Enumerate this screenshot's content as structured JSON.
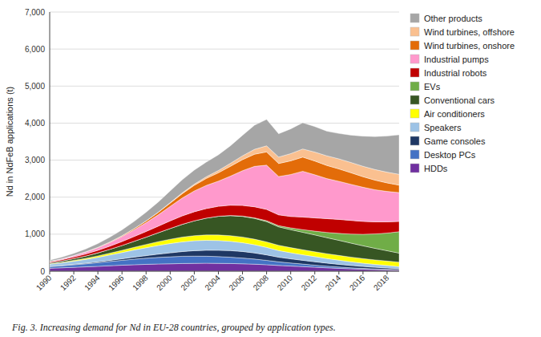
{
  "chart_data": {
    "type": "area",
    "stacked": true,
    "x": [
      1990,
      1991,
      1992,
      1993,
      1994,
      1995,
      1996,
      1997,
      1998,
      1999,
      2000,
      2001,
      2002,
      2003,
      2004,
      2005,
      2006,
      2007,
      2008,
      2009,
      2010,
      2011,
      2012,
      2013,
      2014,
      2015,
      2016,
      2017,
      2018,
      2019
    ],
    "series": [
      {
        "name": "HDDs",
        "color": "#7030a0",
        "values": [
          80,
          92,
          105,
          118,
          132,
          148,
          162,
          175,
          185,
          195,
          200,
          208,
          212,
          215,
          212,
          208,
          200,
          190,
          175,
          155,
          140,
          125,
          108,
          92,
          78,
          65,
          55,
          45,
          38,
          30
        ]
      },
      {
        "name": "Desktop PCs",
        "color": "#4472c4",
        "values": [
          45,
          55,
          68,
          82,
          98,
          115,
          132,
          150,
          165,
          178,
          188,
          195,
          195,
          190,
          182,
          170,
          155,
          138,
          118,
          98,
          82,
          68,
          55,
          45,
          36,
          28,
          22,
          17,
          13,
          10
        ]
      },
      {
        "name": "Game consoles",
        "color": "#1f3864",
        "values": [
          8,
          10,
          14,
          18,
          24,
          32,
          42,
          55,
          70,
          88,
          108,
          128,
          148,
          162,
          172,
          178,
          178,
          165,
          148,
          125,
          112,
          102,
          92,
          82,
          72,
          62,
          52,
          44,
          36,
          28
        ]
      },
      {
        "name": "Speakers",
        "color": "#9dc3e6",
        "values": [
          55,
          68,
          85,
          102,
          122,
          145,
          168,
          192,
          215,
          235,
          252,
          262,
          268,
          268,
          262,
          252,
          238,
          222,
          202,
          180,
          165,
          150,
          138,
          125,
          112,
          100,
          88,
          78,
          68,
          58
        ]
      },
      {
        "name": "Air conditioners",
        "color": "#ffff00",
        "values": [
          12,
          16,
          22,
          29,
          38,
          48,
          60,
          74,
          88,
          102,
          116,
          128,
          138,
          145,
          150,
          152,
          152,
          150,
          148,
          142,
          138,
          135,
          132,
          130,
          128,
          126,
          124,
          122,
          120,
          118
        ]
      },
      {
        "name": "Conventional cars",
        "color": "#375623",
        "values": [
          25,
          35,
          48,
          63,
          82,
          105,
          132,
          162,
          198,
          240,
          290,
          345,
          400,
          455,
          505,
          540,
          558,
          562,
          548,
          498,
          485,
          472,
          455,
          432,
          408,
          378,
          345,
          312,
          278,
          245
        ]
      },
      {
        "name": "EVs",
        "color": "#70ad47",
        "values": [
          0,
          0,
          0,
          0,
          0,
          0,
          0,
          0,
          0,
          0,
          0,
          0,
          0,
          0,
          2,
          5,
          8,
          15,
          25,
          32,
          48,
          72,
          102,
          142,
          188,
          245,
          312,
          390,
          478,
          578
        ]
      },
      {
        "name": "Industrial robots",
        "color": "#c00000",
        "values": [
          25,
          32,
          42,
          54,
          68,
          85,
          105,
          128,
          152,
          178,
          205,
          228,
          245,
          258,
          268,
          278,
          288,
          298,
          305,
          292,
          308,
          338,
          358,
          372,
          378,
          368,
          348,
          325,
          302,
          278
        ]
      },
      {
        "name": "Industrial pumps",
        "color": "#ff99cc",
        "values": [
          18,
          26,
          38,
          54,
          72,
          98,
          135,
          180,
          238,
          305,
          392,
          482,
          562,
          625,
          680,
          785,
          938,
          1092,
          1195,
          1035,
          1135,
          1238,
          1165,
          1082,
          1028,
          975,
          922,
          868,
          822,
          778
        ]
      },
      {
        "name": "Wind turbines, onshore",
        "color": "#e36c09",
        "values": [
          0,
          1,
          3,
          6,
          10,
          15,
          22,
          32,
          46,
          65,
          88,
          118,
          152,
          188,
          225,
          265,
          298,
          328,
          358,
          352,
          368,
          382,
          372,
          355,
          335,
          312,
          285,
          258,
          230,
          202
        ]
      },
      {
        "name": "Wind turbines, offshore",
        "color": "#fac090",
        "values": [
          0,
          0,
          0,
          0,
          0,
          0,
          0,
          1,
          3,
          7,
          14,
          22,
          33,
          46,
          63,
          82,
          105,
          132,
          165,
          175,
          195,
          220,
          242,
          260,
          272,
          278,
          282,
          286,
          290,
          292
        ]
      },
      {
        "name": "Other products",
        "color": "#a6a6a6",
        "values": [
          28,
          42,
          58,
          76,
          100,
          128,
          158,
          192,
          232,
          272,
          316,
          352,
          378,
          395,
          422,
          472,
          552,
          652,
          712,
          628,
          668,
          708,
          688,
          665,
          685,
          738,
          812,
          892,
          975,
          1068
        ]
      }
    ],
    "y_label": "Nd in NdFeB applications (t)",
    "caption": "Fig. 3.  Increasing demand for Nd in EU-28 countries, grouped by application types.",
    "xlim": [
      1990,
      2019
    ],
    "xticks": [
      1990,
      1992,
      1994,
      1996,
      1998,
      2000,
      2002,
      2004,
      2006,
      2008,
      2010,
      2012,
      2014,
      2016,
      2018
    ],
    "ylim": [
      0,
      7000
    ],
    "yticks": [
      0,
      {
        "value": 1000,
        "label": "1,000"
      },
      {
        "value": 2000,
        "label": "2,000"
      },
      {
        "value": 3000,
        "label": "3,000"
      },
      {
        "value": 4000,
        "label": "4,000"
      },
      {
        "value": 5000,
        "label": "5,000"
      },
      {
        "value": 6000,
        "label": "6,000"
      },
      {
        "value": 7000,
        "label": "7,000"
      }
    ],
    "grid": true,
    "legend": "right"
  }
}
